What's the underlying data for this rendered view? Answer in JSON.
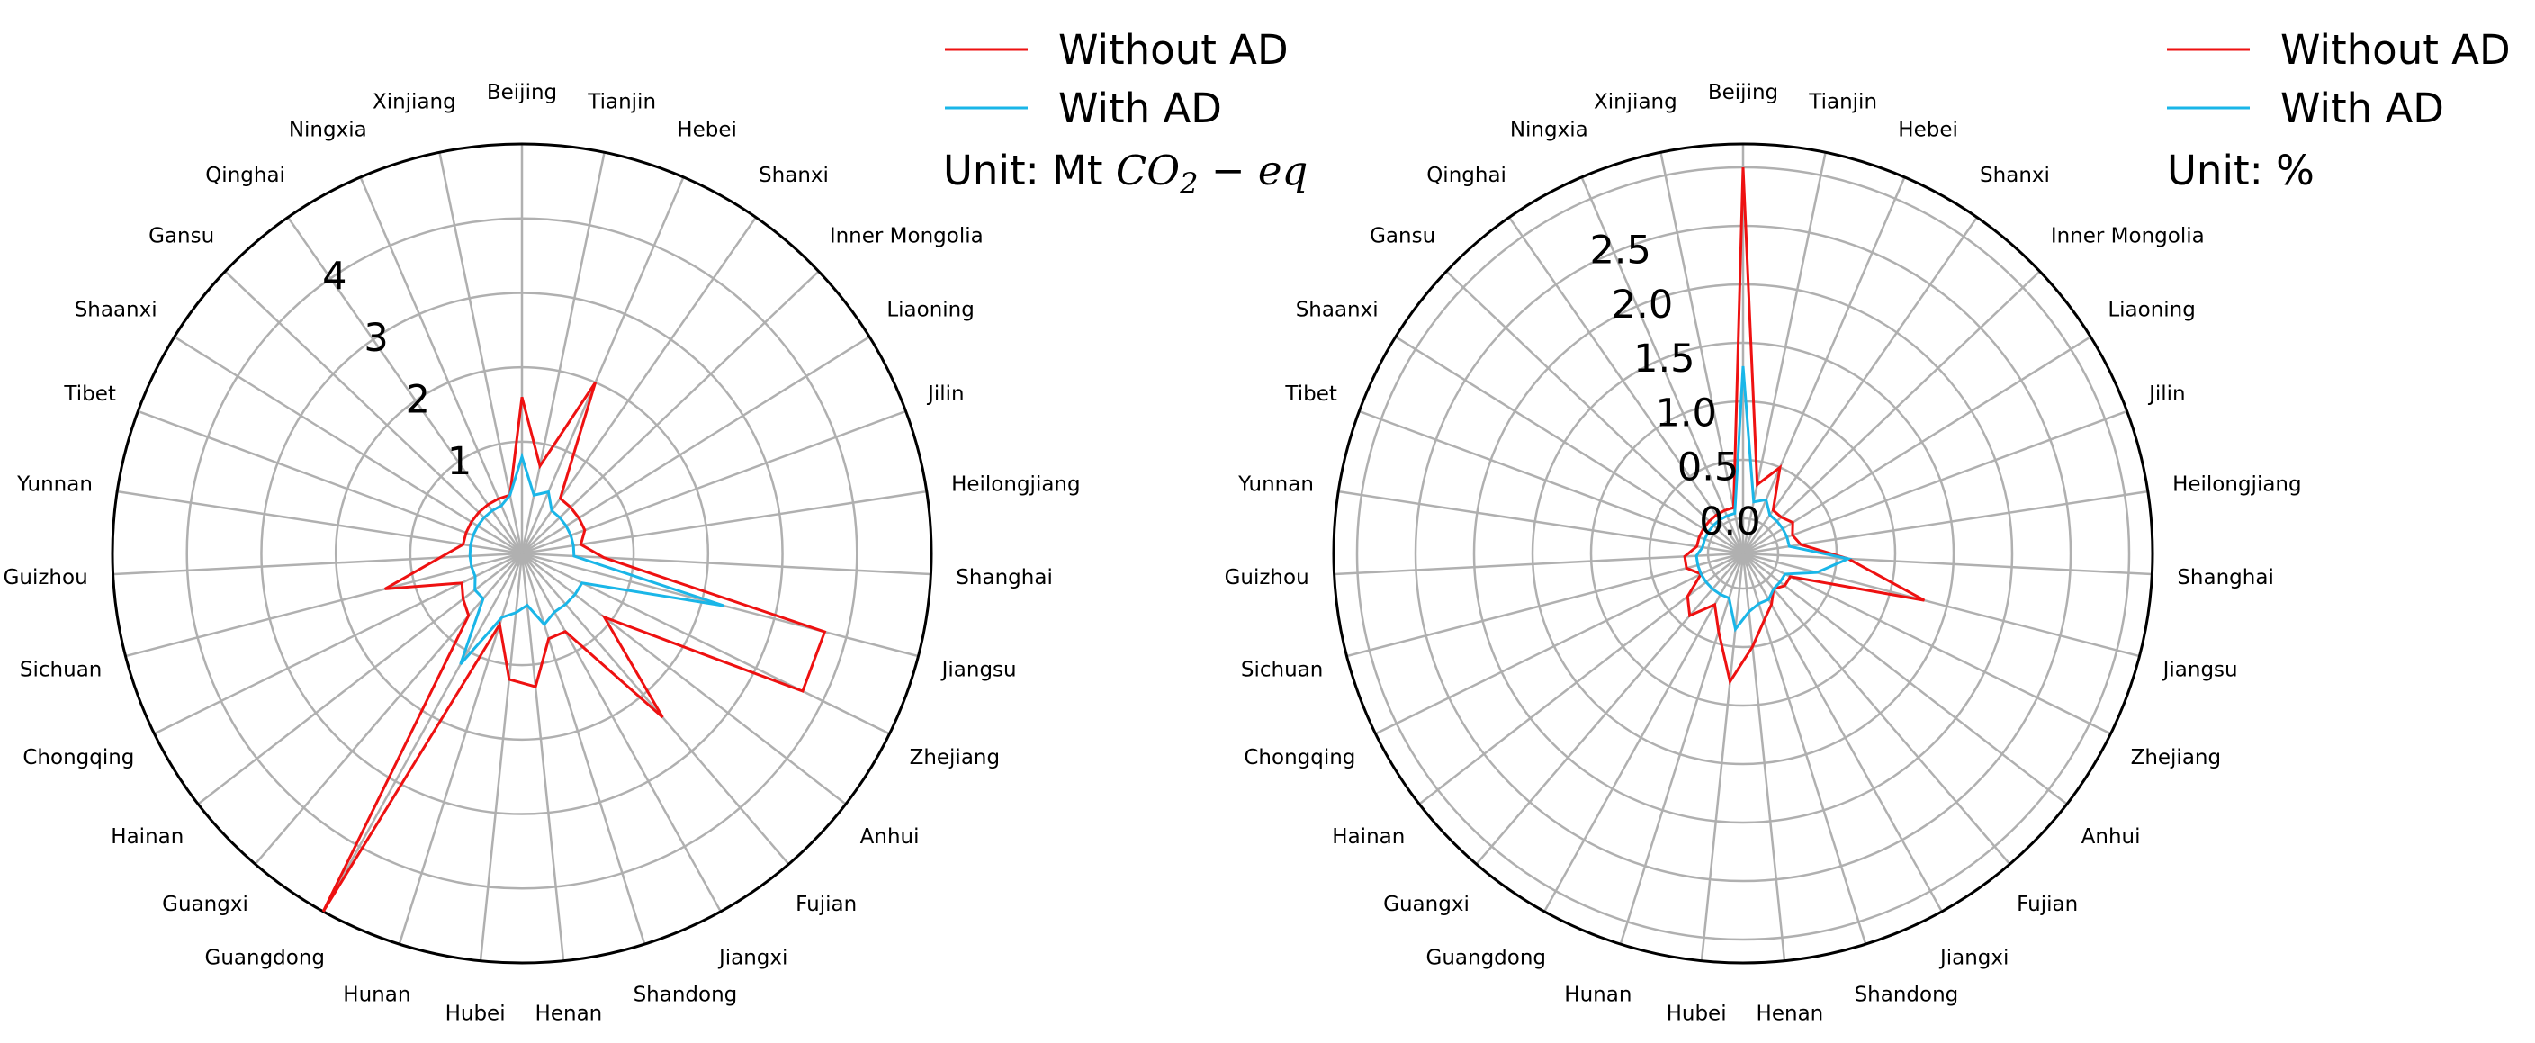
{
  "chart_data": [
    {
      "type": "radar",
      "categories": [
        "Beijing",
        "Tianjin",
        "Hebei",
        "Shanxi",
        "Inner Mongolia",
        "Liaoning",
        "Jilin",
        "Heilongjiang",
        "Shanghai",
        "Jiangsu",
        "Zhejiang",
        "Anhui",
        "Fujian",
        "Jiangxi",
        "Shandong",
        "Henan",
        "Hubei",
        "Hunan",
        "Guangdong",
        "Guangxi",
        "Hainan",
        "Chongqing",
        "Sichuan",
        "Guizhou",
        "Yunnan",
        "Tibet",
        "Shaanxi",
        "Gansu",
        "Qinghai",
        "Ningxia",
        "Xinjiang"
      ],
      "rlim": [
        -0.5,
        5.0
      ],
      "rticks": [
        1,
        2,
        3,
        4
      ],
      "rtick_labels": [
        "1",
        "2",
        "3",
        "4"
      ],
      "grid": true,
      "legend_position": "top-right",
      "unit_label": "Unit: Mt ",
      "unit_math": "CO",
      "unit_math_sub": "2",
      "unit_math_rest": " − eq",
      "colors": {
        "without": "#ee1111",
        "with": "#1ab6e8"
      },
      "series": [
        {
          "name": "Without AD",
          "values": [
            1.6,
            0.7,
            2.0,
            0.4,
            0.4,
            0.4,
            0.4,
            0.3,
            0.6,
            3.7,
            3.7,
            0.9,
            2.4,
            0.7,
            0.7,
            1.3,
            1.2,
            0.5,
            5.0,
            0.6,
            0.5,
            0.4,
            1.4,
            0.6,
            0.3,
            0.3,
            0.3,
            0.3,
            0.3,
            0.3,
            0.3
          ]
        },
        {
          "name": "With AD",
          "values": [
            0.8,
            0.3,
            0.4,
            0.2,
            0.2,
            0.2,
            0.2,
            0.2,
            0.2,
            2.3,
            0.4,
            0.4,
            0.4,
            0.4,
            0.5,
            0.2,
            0.3,
            0.4,
            1.2,
            0.3,
            0.3,
            0.2,
            0.2,
            0.2,
            0.2,
            0.2,
            0.2,
            0.2,
            0.2,
            0.2,
            0.3
          ]
        }
      ]
    },
    {
      "type": "radar",
      "categories": [
        "Beijing",
        "Tianjin",
        "Hebei",
        "Shanxi",
        "Inner Mongolia",
        "Liaoning",
        "Jilin",
        "Heilongjiang",
        "Shanghai",
        "Jiangsu",
        "Zhejiang",
        "Anhui",
        "Fujian",
        "Jiangxi",
        "Shandong",
        "Henan",
        "Hubei",
        "Hunan",
        "Guangdong",
        "Guangxi",
        "Hainan",
        "Chongqing",
        "Sichuan",
        "Guizhou",
        "Yunnan",
        "Tibet",
        "Shaanxi",
        "Gansu",
        "Qinghai",
        "Ningxia",
        "Xinjiang"
      ],
      "rlim": [
        -0.3,
        3.2
      ],
      "rticks": [
        0.0,
        0.5,
        1.0,
        1.5,
        2.0,
        2.5
      ],
      "rtick_labels": [
        "0.0",
        "0.5",
        "1.0",
        "1.5",
        "2.0",
        "2.5"
      ],
      "grid": true,
      "legend_position": "top-right",
      "unit_label": "Unit: %",
      "colors": {
        "without": "#ee1111",
        "with": "#1ab6e8"
      },
      "series": [
        {
          "name": "Without AD",
          "values": [
            3.0,
            0.3,
            0.5,
            0.15,
            0.15,
            0.2,
            0.15,
            0.2,
            0.6,
            1.3,
            0.15,
            0.15,
            0.1,
            0.2,
            0.3,
            0.5,
            0.8,
            0.4,
            0.2,
            0.4,
            0.3,
            0.1,
            0.2,
            0.2,
            0.1,
            0.1,
            0.1,
            0.1,
            0.1,
            0.1,
            0.1
          ]
        },
        {
          "name": "With AD",
          "values": [
            1.3,
            0.15,
            0.2,
            0.1,
            0.1,
            0.1,
            0.1,
            0.1,
            0.6,
            0.35,
            0.1,
            0.1,
            0.1,
            0.15,
            0.15,
            0.2,
            0.35,
            0.1,
            0.1,
            0.1,
            0.1,
            0.1,
            0.1,
            0.1,
            0.05,
            0.05,
            0.05,
            0.05,
            0.05,
            0.05,
            0.05
          ]
        }
      ]
    }
  ]
}
